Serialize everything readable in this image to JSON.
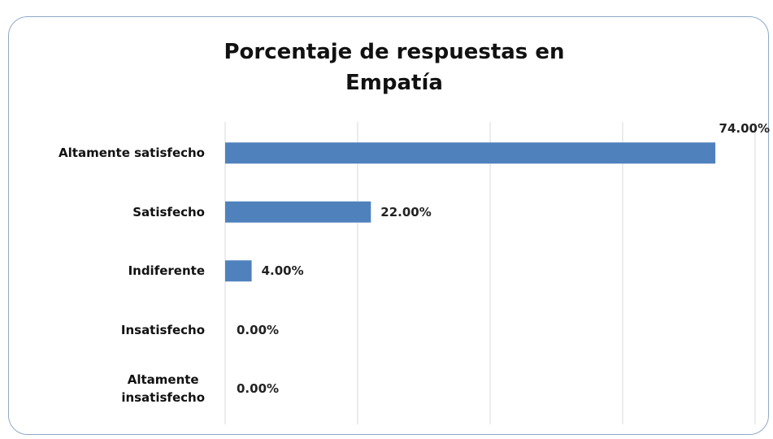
{
  "chart_data": {
    "type": "bar",
    "orientation": "horizontal",
    "title": "Porcentaje de respuestas en\nEmpatía",
    "categories": [
      "Altamente satisfecho",
      "Satisfecho",
      "Indiferente",
      "Insatisfecho",
      "Altamente\ninsatisfecho"
    ],
    "values": [
      74,
      22,
      4,
      0,
      0
    ],
    "value_labels": [
      "74.00%",
      "22.00%",
      "4.00%",
      "0.00%",
      "0.00%"
    ],
    "color": "#4f81bd",
    "xlim": [
      0,
      80
    ],
    "xticks": [
      0,
      20,
      40,
      60,
      80
    ],
    "grid": true
  }
}
